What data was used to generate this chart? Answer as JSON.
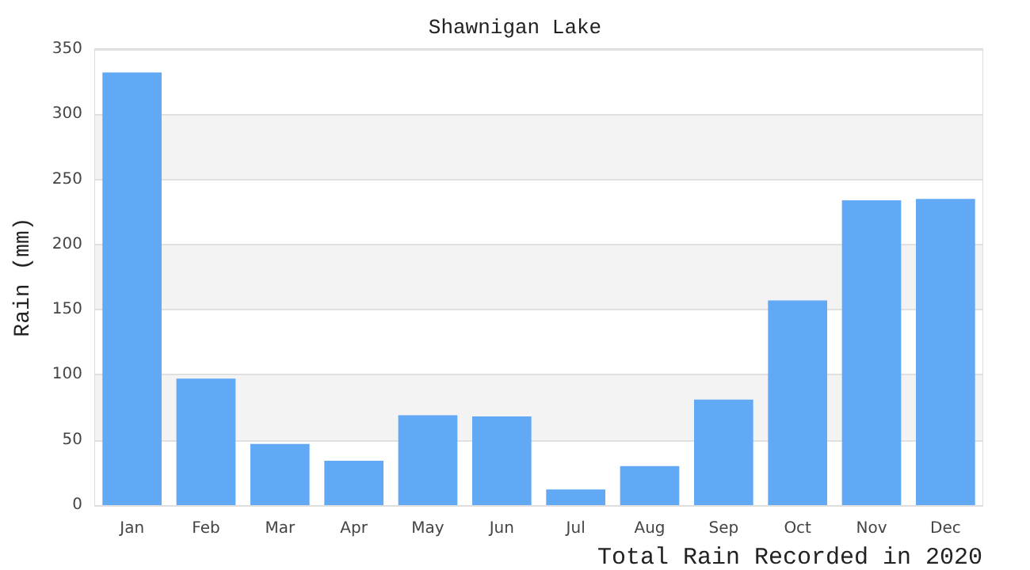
{
  "chart_data": {
    "type": "bar",
    "title": "Shawnigan Lake",
    "ylabel": "Rain (mm)",
    "annotations": [
      "Total Rain Recorded in 2020"
    ],
    "categories": [
      "Jan",
      "Feb",
      "Mar",
      "Apr",
      "May",
      "Jun",
      "Jul",
      "Aug",
      "Sep",
      "Oct",
      "Nov",
      "Dec"
    ],
    "values": [
      332,
      97,
      47,
      34,
      69,
      68,
      12,
      30,
      81,
      157,
      234,
      235
    ],
    "color": "#61a8f5",
    "ylim": [
      0,
      350
    ],
    "yticks": [
      0,
      50,
      100,
      150,
      200,
      250,
      300,
      350
    ],
    "grid": "y"
  }
}
